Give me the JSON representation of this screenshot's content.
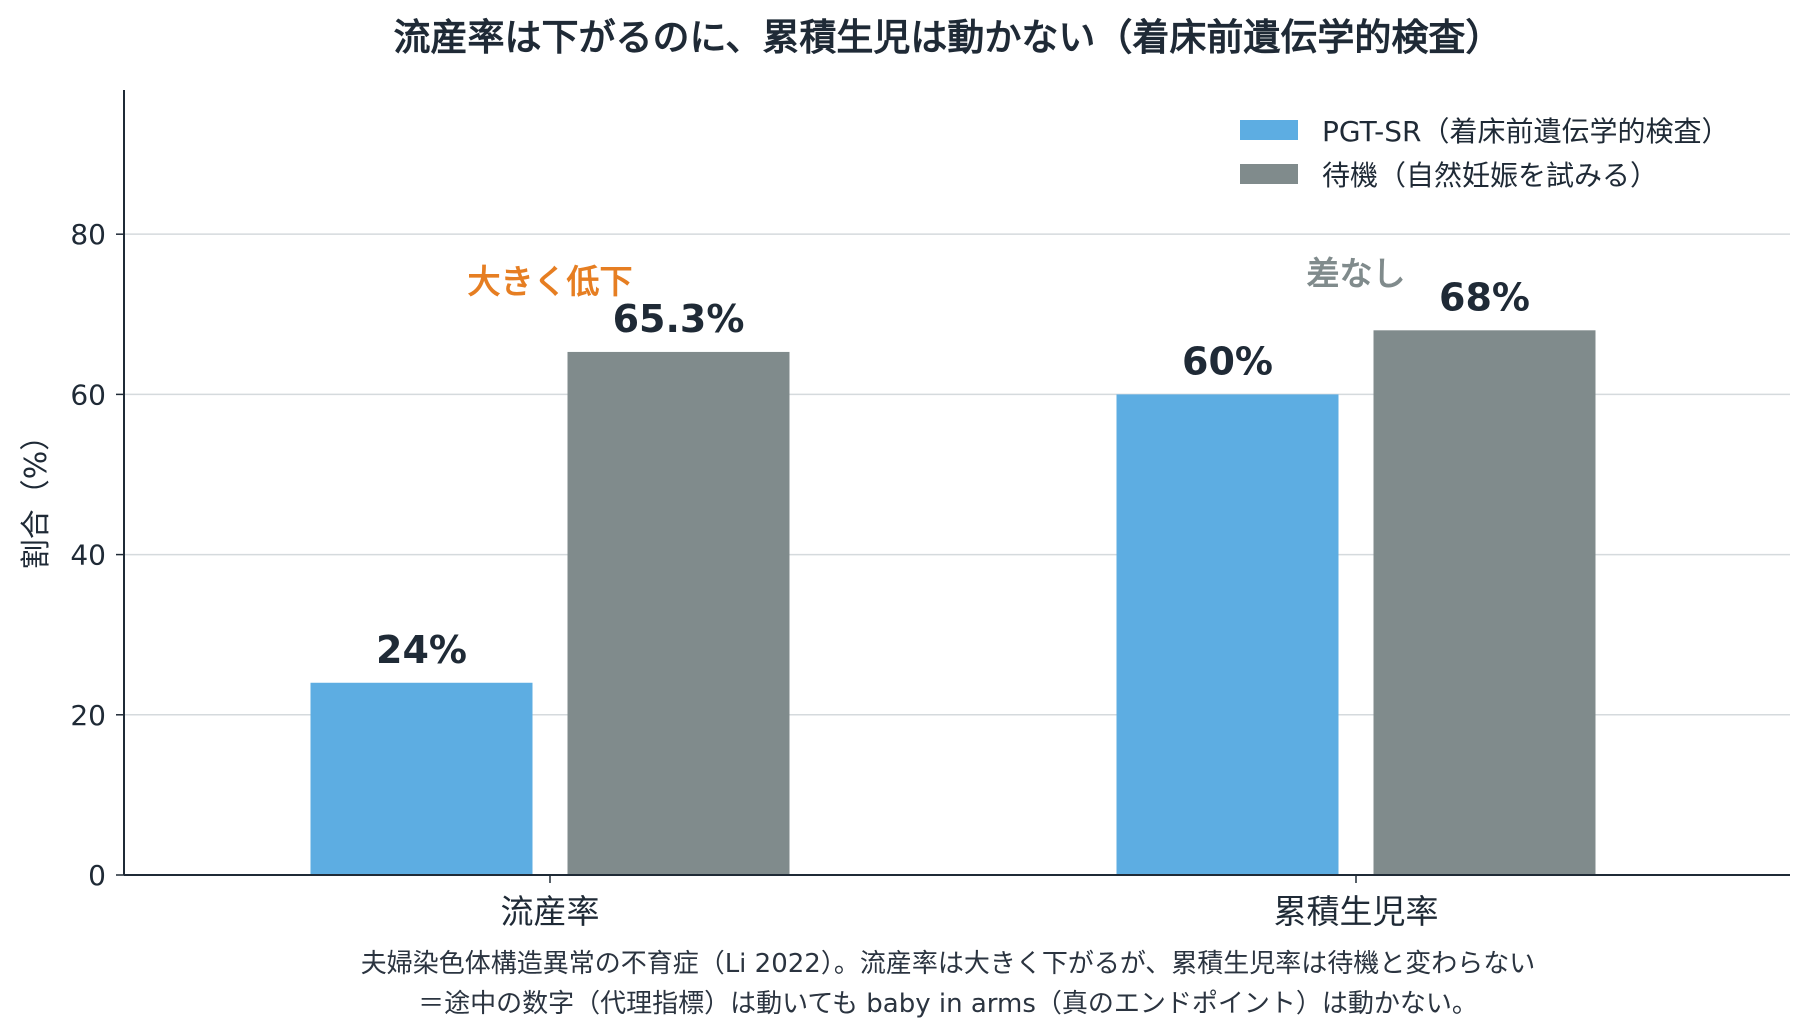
{
  "chart_data": {
    "type": "bar",
    "title": "流産率は下がるのに、累積生児は動かない（着床前遺伝学的検査）",
    "ylabel": "割合（%）",
    "xlabel": "",
    "ylim": [
      0,
      98
    ],
    "yticks": [
      0,
      20,
      40,
      60,
      80
    ],
    "categories": [
      "流産率",
      "累積生児率"
    ],
    "series": [
      {
        "name": "PGT-SR（着床前遺伝学的検査）",
        "color": "#5dade2",
        "values": [
          24,
          60
        ],
        "labels": [
          "24%",
          "60%"
        ]
      },
      {
        "name": "待機（自然妊娠を試みる）",
        "color": "#808b8c",
        "values": [
          65.3,
          68
        ],
        "labels": [
          "65.3%",
          "68%"
        ]
      }
    ],
    "grid": "horizontal",
    "legend_position": "top-right",
    "annotations": [
      {
        "text": "大きく低下",
        "category": "流産率",
        "color": "#e67e22"
      },
      {
        "text": "差なし",
        "category": "累積生児率",
        "color": "#808b8c"
      }
    ],
    "caption": [
      "夫婦染色体構造異常の不育症（Li 2022）。流産率は大きく下がるが、累積生児率は待機と変わらない",
      "＝途中の数字（代理指標）は動いても baby in arms（真のエンドポイント）は動かない。"
    ]
  }
}
